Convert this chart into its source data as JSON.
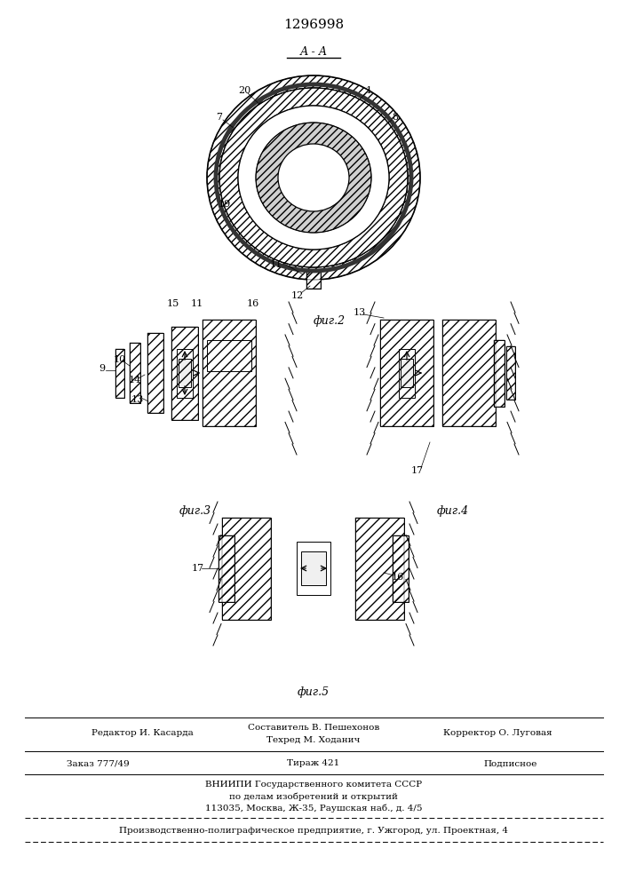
{
  "patent_number": "1296998",
  "bg": "#ffffff",
  "black": "#000000",
  "section_label": "А - А",
  "fig_label_2": "фиг.2",
  "fig_label_3": "фиг.3",
  "fig_label_4": "фиг.4",
  "fig_label_5": "фиг.5",
  "footer_left1": "Редактор И. Касарда",
  "footer_center1a": "Составитель В. Пешехонов",
  "footer_center1b": "Техред М. Ходанич",
  "footer_right1": "Корректор О. Луговая",
  "footer_left2": "Заказ 777/49",
  "footer_center2": "Тираж 421",
  "footer_right2": "Подписное",
  "footer_line3": "ВНИИПИ Государственного комитета СССР",
  "footer_line4": "по делам изобретений и открытий",
  "footer_line5": "113035, Москва, Ж-35, Раушская наб., д. 4/5",
  "footer_line6": "Производственно-полиграфическое предприятие, г. Ужгород, ул. Проектная, 4"
}
